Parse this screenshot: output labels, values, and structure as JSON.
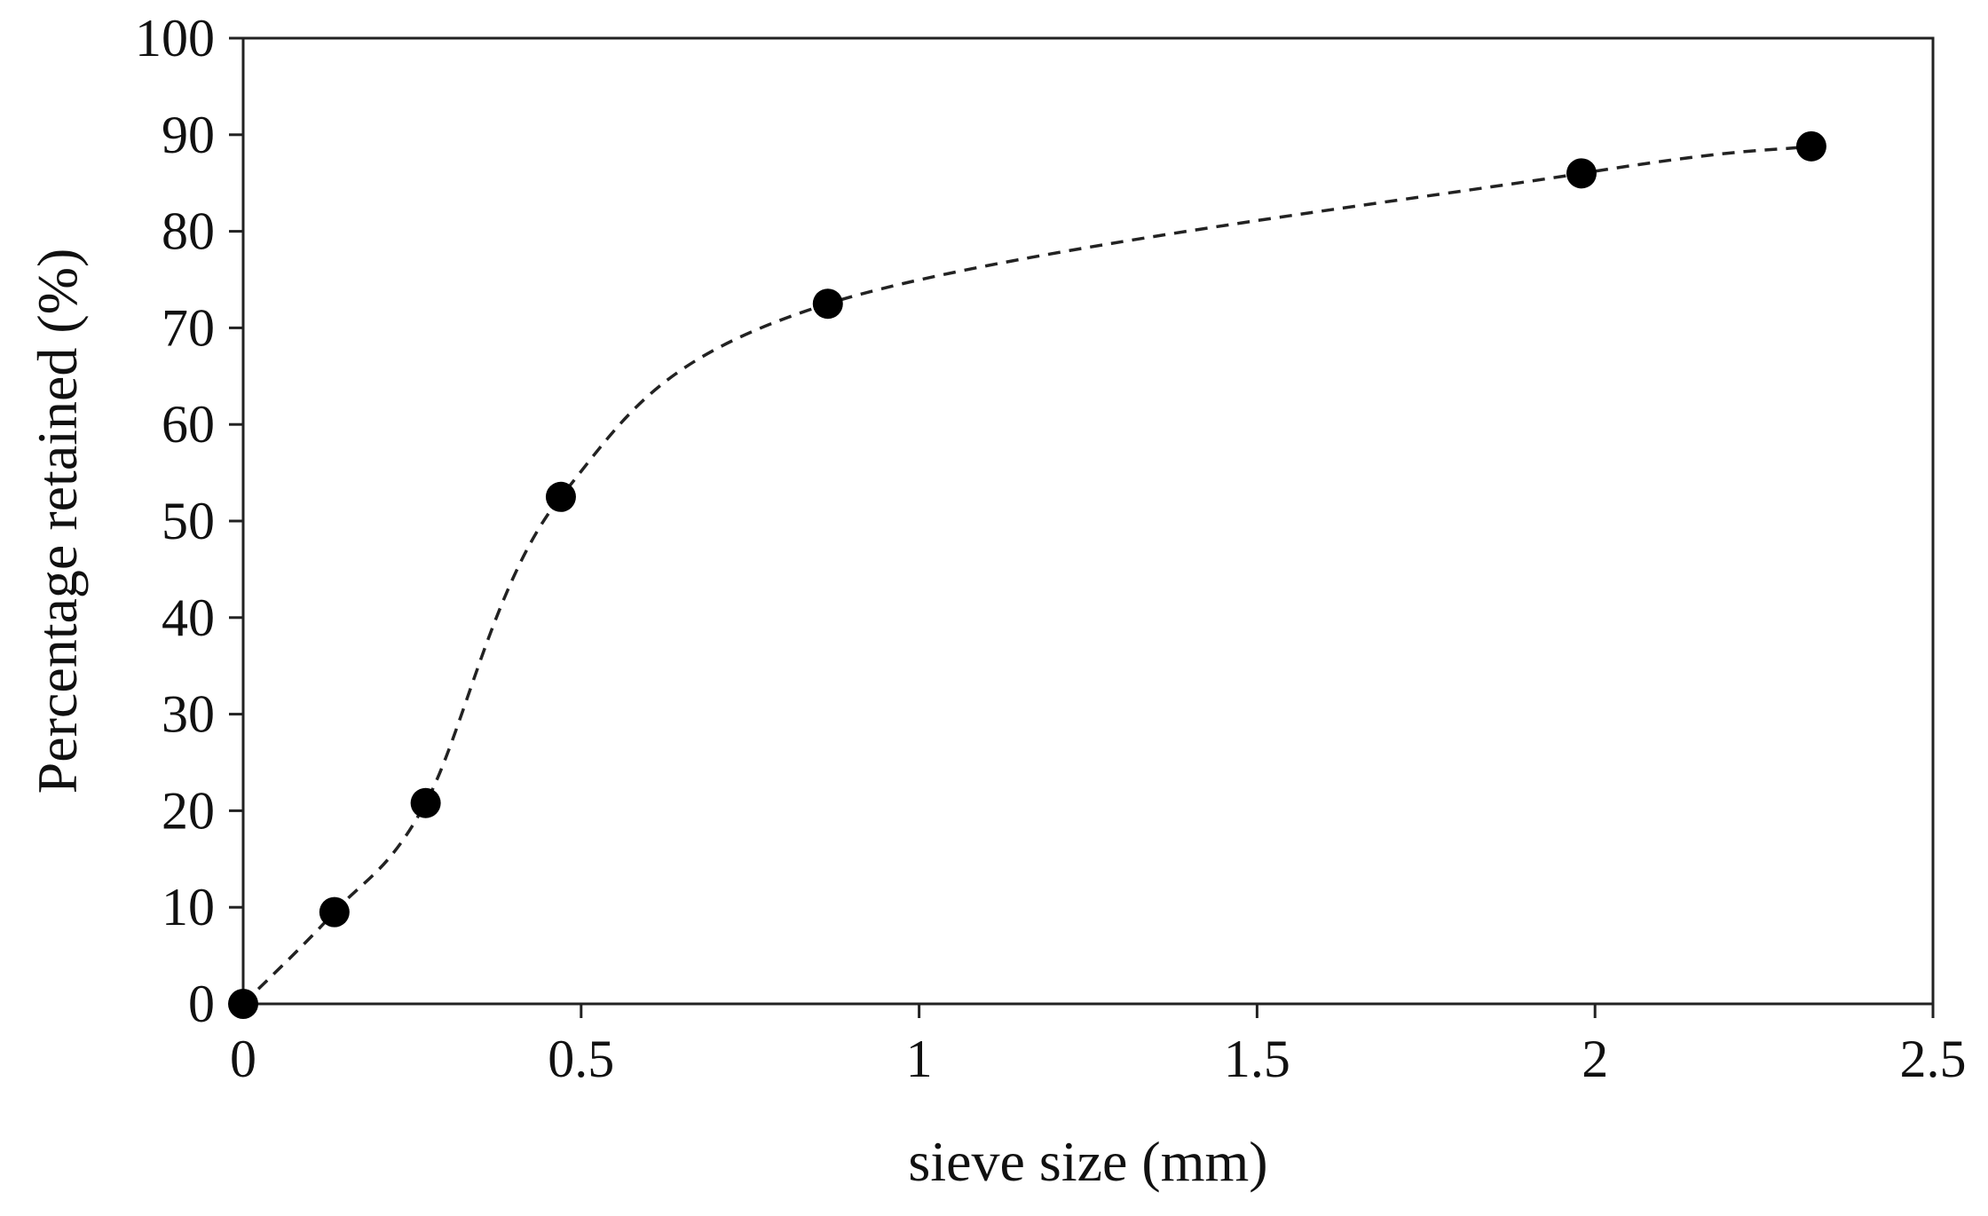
{
  "chart_data": {
    "type": "scatter",
    "title": "",
    "xlabel": "sieve size (mm)",
    "ylabel": "Percentage retained (%)",
    "xlim": [
      0,
      2.5
    ],
    "ylim": [
      0,
      100
    ],
    "x_ticks": [
      "0",
      "0.5",
      "1",
      "1.5",
      "2",
      "2.5"
    ],
    "y_ticks": [
      "0",
      "10",
      "20",
      "30",
      "40",
      "50",
      "60",
      "70",
      "80",
      "90",
      "100"
    ],
    "grid": false,
    "legend": "none",
    "series": [
      {
        "marker": "filled-circle",
        "line_style": "dashed smooth curve",
        "points": [
          {
            "x": 0.0,
            "y": 0
          },
          {
            "x": 0.135,
            "y": 9.5
          },
          {
            "x": 0.27,
            "y": 20.8
          },
          {
            "x": 0.47,
            "y": 52.5
          },
          {
            "x": 0.865,
            "y": 72.5
          },
          {
            "x": 1.98,
            "y": 86
          },
          {
            "x": 2.32,
            "y": 88.8
          }
        ]
      }
    ],
    "colors": {
      "marker": "#000000",
      "line": "#222222",
      "axis": "#222222"
    }
  }
}
